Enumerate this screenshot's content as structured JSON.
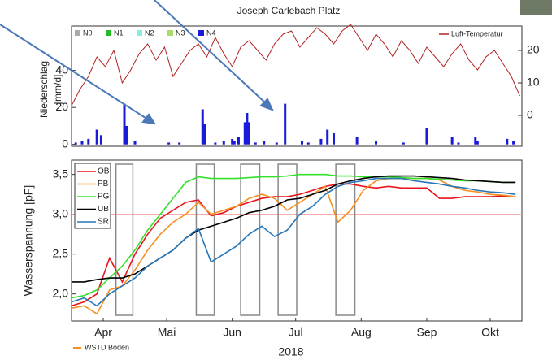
{
  "chart_data": [
    {
      "type": "bar",
      "title": "Joseph Carlebach Platz",
      "ylabel_lines": [
        "Niederschlag",
        "[mm/d]"
      ],
      "xlim": [
        91,
        304
      ],
      "ylim": [
        -1,
        64
      ],
      "yticks": [
        0,
        20,
        40
      ],
      "y2lim": [
        -9.5,
        27.5
      ],
      "y2ticks": [
        0,
        10,
        20
      ],
      "precip_classes": [
        {
          "name": "N0",
          "color": "#aaaaaa"
        },
        {
          "name": "N1",
          "color": "#22bb22"
        },
        {
          "name": "N2",
          "color": "#88eedd"
        },
        {
          "name": "N3",
          "color": "#aadd66"
        }
      ],
      "series": [
        {
          "name": "N4",
          "color": "#1a1adb",
          "x": [
            93,
            96,
            99,
            103,
            105,
            116,
            117,
            121,
            137,
            142,
            153,
            154,
            159,
            163,
            167,
            168,
            170,
            173,
            174,
            175,
            178,
            182,
            188,
            192,
            200,
            203,
            209,
            212,
            215,
            226,
            235,
            248,
            259,
            271,
            274,
            282,
            283,
            297,
            300
          ],
          "values": [
            1,
            2,
            3,
            8,
            5,
            22,
            10,
            2,
            1,
            1,
            19,
            11,
            1,
            2,
            3,
            2,
            4,
            12,
            17,
            12,
            1,
            2,
            1,
            22,
            2,
            1,
            3,
            8,
            6,
            4,
            2,
            1,
            9,
            4,
            1,
            4,
            2,
            3,
            2
          ]
        },
        {
          "name": "Luft-Temperatur",
          "color": "#b22222",
          "axis": "y2",
          "x": [
            91,
            95,
            99,
            103,
            107,
            111,
            115,
            119,
            123,
            127,
            131,
            135,
            139,
            143,
            147,
            151,
            155,
            159,
            163,
            167,
            171,
            175,
            179,
            183,
            187,
            191,
            195,
            199,
            203,
            207,
            211,
            215,
            219,
            223,
            227,
            231,
            235,
            239,
            243,
            247,
            251,
            255,
            259,
            263,
            267,
            271,
            275,
            279,
            283,
            287,
            291,
            295,
            299,
            303
          ],
          "values": [
            3,
            8,
            12,
            18,
            15,
            20,
            10,
            14,
            19,
            22,
            17,
            21,
            12,
            16,
            20,
            22,
            18,
            24,
            19,
            15,
            21,
            23,
            20,
            17,
            22,
            25,
            26,
            21,
            24,
            27,
            25,
            22,
            26,
            28,
            24,
            20,
            25,
            22,
            18,
            23,
            20,
            16,
            21,
            18,
            15,
            19,
            22,
            17,
            14,
            18,
            20,
            16,
            12,
            6
          ]
        }
      ]
    },
    {
      "type": "line",
      "ylabel": "Wasserspannung [pF]",
      "xlabel": "2018",
      "xlim": [
        91,
        304
      ],
      "ylim": [
        1.66,
        3.68
      ],
      "xticks": [
        {
          "value": 106,
          "label": "Apr"
        },
        {
          "value": 136,
          "label": "Mai"
        },
        {
          "value": 167,
          "label": "Jun"
        },
        {
          "value": 197,
          "label": "Jul"
        },
        {
          "value": 228,
          "label": "Aug"
        },
        {
          "value": 259,
          "label": "Sep"
        },
        {
          "value": 289,
          "label": "Okt"
        }
      ],
      "yticks": [
        {
          "value": 2.0,
          "label": "2,0"
        },
        {
          "value": 2.5,
          "label": "2,5"
        },
        {
          "value": 3.0,
          "label": "3,0"
        },
        {
          "value": 3.5,
          "label": "3,5"
        }
      ],
      "reference_line": 3.0,
      "highlight_ranges": [
        [
          112,
          120
        ],
        [
          150,
          158.5
        ],
        [
          171,
          180
        ],
        [
          188.7,
          197.5
        ],
        [
          216,
          225
        ]
      ],
      "footnote": "WSTD Boden",
      "x": [
        91,
        97,
        103,
        109,
        115,
        121,
        127,
        133,
        139,
        145,
        151,
        157,
        163,
        169,
        175,
        181,
        187,
        193,
        199,
        205,
        211,
        217,
        223,
        229,
        235,
        241,
        247,
        253,
        259,
        265,
        271,
        277,
        283,
        289,
        295,
        301
      ],
      "series": [
        {
          "name": "OB",
          "color": "#e8141c",
          "values": [
            1.85,
            1.9,
            2.0,
            2.45,
            2.15,
            2.5,
            2.75,
            2.95,
            3.05,
            3.15,
            3.18,
            2.98,
            3.02,
            3.1,
            3.15,
            3.2,
            3.22,
            3.22,
            3.25,
            3.3,
            3.35,
            3.38,
            3.38,
            3.35,
            3.33,
            3.35,
            3.33,
            3.33,
            3.33,
            3.2,
            3.2,
            3.22,
            3.22,
            3.22,
            3.23,
            3.22
          ]
        },
        {
          "name": "PB",
          "color": "#f5901e",
          "values": [
            1.82,
            1.85,
            1.75,
            2.05,
            2.1,
            2.3,
            2.55,
            2.75,
            2.9,
            3.0,
            3.15,
            3.0,
            3.05,
            3.1,
            3.2,
            3.25,
            3.2,
            3.05,
            3.15,
            3.25,
            3.35,
            2.9,
            3.05,
            3.3,
            3.42,
            3.45,
            3.45,
            3.45,
            3.45,
            3.43,
            3.35,
            3.3,
            3.28,
            3.25,
            3.24,
            3.22
          ]
        },
        {
          "name": "PG",
          "color": "#33e02a",
          "values": [
            1.95,
            1.98,
            2.05,
            2.2,
            2.35,
            2.55,
            2.8,
            3.0,
            3.2,
            3.4,
            3.47,
            3.45,
            3.45,
            3.45,
            3.46,
            3.47,
            3.47,
            3.48,
            3.5,
            3.5,
            3.5,
            3.48,
            3.48,
            3.47,
            3.47,
            3.47,
            3.46,
            3.45,
            3.45,
            3.44,
            3.43,
            3.42,
            3.42,
            3.41,
            3.4,
            3.4
          ]
        },
        {
          "name": "UB",
          "color": "#000000",
          "values": [
            2.15,
            2.15,
            2.18,
            2.2,
            2.2,
            2.25,
            2.35,
            2.45,
            2.55,
            2.7,
            2.8,
            2.85,
            2.9,
            2.95,
            3.02,
            3.05,
            3.1,
            3.18,
            3.2,
            3.25,
            3.3,
            3.38,
            3.42,
            3.45,
            3.47,
            3.48,
            3.48,
            3.48,
            3.47,
            3.46,
            3.45,
            3.43,
            3.42,
            3.41,
            3.4,
            3.4
          ]
        },
        {
          "name": "SR",
          "color": "#2676b8",
          "values": [
            1.9,
            1.95,
            1.85,
            2.0,
            2.1,
            2.2,
            2.35,
            2.45,
            2.55,
            2.7,
            2.82,
            2.4,
            2.5,
            2.6,
            2.75,
            2.85,
            2.72,
            2.8,
            3.0,
            3.1,
            3.25,
            3.35,
            3.4,
            3.42,
            3.45,
            3.45,
            3.45,
            3.42,
            3.4,
            3.38,
            3.35,
            3.33,
            3.3,
            3.28,
            3.27,
            3.25
          ]
        }
      ]
    }
  ]
}
